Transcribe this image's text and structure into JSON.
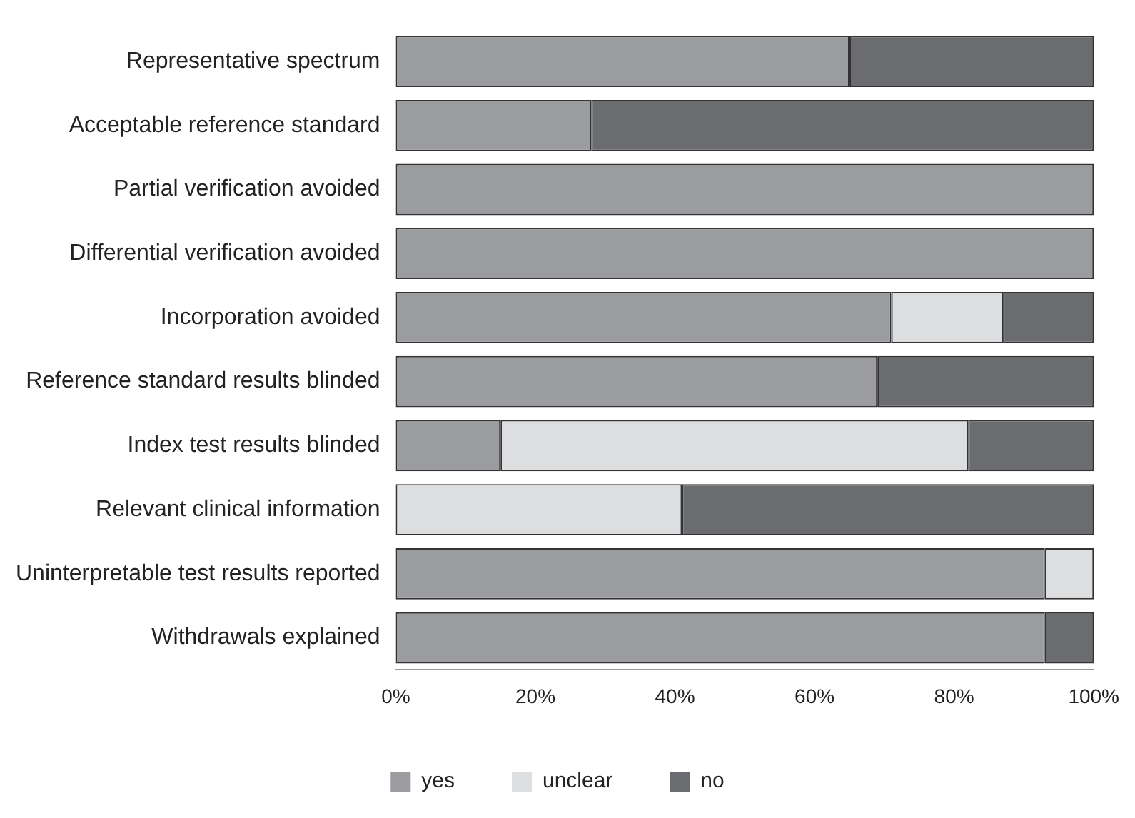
{
  "chart_data": {
    "type": "bar",
    "orientation": "horizontal",
    "stacked": true,
    "categories": [
      "Representative spectrum",
      "Acceptable reference standard",
      "Partial verification avoided",
      "Differential verification avoided",
      "Incorporation avoided",
      "Reference standard results blinded",
      "Index test results blinded",
      "Relevant clinical information",
      "Uninterpretable test results reported",
      "Withdrawals explained"
    ],
    "series": [
      {
        "name": "yes",
        "color": "#9a9ca0",
        "values": [
          65,
          28,
          100,
          100,
          71,
          69,
          15,
          null,
          93,
          93
        ]
      },
      {
        "name": "unclear",
        "color": "#dcdee0",
        "values": [
          null,
          null,
          null,
          null,
          16,
          null,
          67,
          41,
          7,
          null
        ]
      },
      {
        "name": "no",
        "color": "#6a6c70",
        "values": [
          35,
          72,
          null,
          null,
          13,
          31,
          18,
          59,
          null,
          7
        ]
      }
    ],
    "xlim": [
      0,
      100
    ],
    "xticks": [
      {
        "value": 0,
        "label": "0%"
      },
      {
        "value": 20,
        "label": "20%"
      },
      {
        "value": 40,
        "label": "40%"
      },
      {
        "value": 60,
        "label": "60%"
      },
      {
        "value": 80,
        "label": "80%"
      },
      {
        "value": 100,
        "label": "100%"
      }
    ],
    "grid": false,
    "legend": "bottom"
  }
}
